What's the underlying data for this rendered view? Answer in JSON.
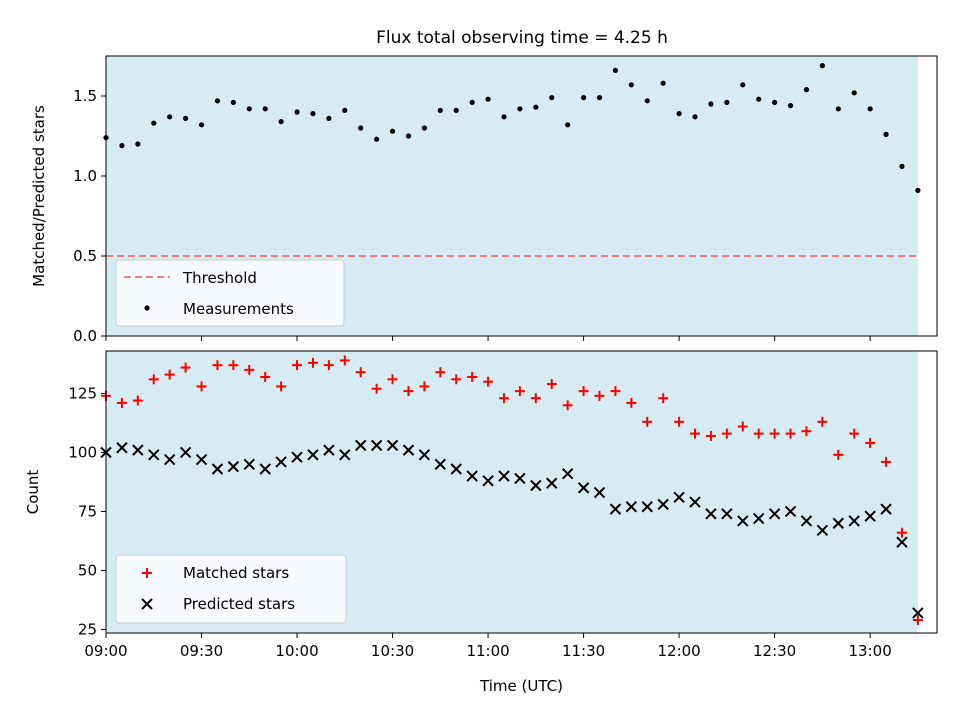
{
  "title": "Flux total observing time = 4.25 h",
  "colors": {
    "shade": "#add8e6",
    "threshold": "#f08080",
    "measurement": "#000000",
    "matched": "#ff0000",
    "predicted": "#000000"
  },
  "chart_data": [
    {
      "type": "scatter",
      "ylabel": "Matched/Predicted stars",
      "xlabel": "",
      "ylim": [
        0,
        1.75
      ],
      "yticks": [
        "0.0",
        "0.5",
        "1.0",
        "1.5"
      ],
      "shaded_range": [
        "09:00",
        "13:15"
      ],
      "legend_position": "lower-left",
      "threshold": {
        "name": "Threshold",
        "value": 0.5,
        "x_range": [
          "09:00",
          "13:15"
        ]
      },
      "series": [
        {
          "name": "Measurements",
          "x": [
            "09:00",
            "09:05",
            "09:10",
            "09:15",
            "09:20",
            "09:25",
            "09:30",
            "09:35",
            "09:40",
            "09:45",
            "09:50",
            "09:55",
            "10:00",
            "10:05",
            "10:10",
            "10:15",
            "10:20",
            "10:25",
            "10:30",
            "10:35",
            "10:40",
            "10:45",
            "10:50",
            "10:55",
            "11:00",
            "11:05",
            "11:10",
            "11:15",
            "11:20",
            "11:25",
            "11:30",
            "11:35",
            "11:40",
            "11:45",
            "11:50",
            "11:55",
            "12:00",
            "12:05",
            "12:10",
            "12:15",
            "12:20",
            "12:25",
            "12:30",
            "12:35",
            "12:40",
            "12:45",
            "12:50",
            "12:55",
            "13:00",
            "13:05",
            "13:10",
            "13:15"
          ],
          "y": [
            1.24,
            1.19,
            1.2,
            1.33,
            1.37,
            1.36,
            1.32,
            1.47,
            1.46,
            1.42,
            1.42,
            1.34,
            1.4,
            1.39,
            1.36,
            1.41,
            1.3,
            1.23,
            1.28,
            1.25,
            1.3,
            1.41,
            1.41,
            1.46,
            1.48,
            1.37,
            1.42,
            1.43,
            1.49,
            1.32,
            1.49,
            1.49,
            1.66,
            1.57,
            1.47,
            1.58,
            1.39,
            1.37,
            1.45,
            1.46,
            1.57,
            1.48,
            1.46,
            1.44,
            1.54,
            1.69,
            1.42,
            1.52,
            1.42,
            1.26,
            1.06,
            0.91
          ]
        }
      ]
    },
    {
      "type": "scatter",
      "ylabel": "Count",
      "xlabel": "Time (UTC)",
      "ylim": [
        23.5,
        143
      ],
      "yticks": [
        "25",
        "50",
        "75",
        "100",
        "125"
      ],
      "xticks": [
        "09:00",
        "09:30",
        "10:00",
        "10:30",
        "11:00",
        "11:30",
        "12:00",
        "12:30",
        "13:00"
      ],
      "shaded_range": [
        "09:00",
        "13:15"
      ],
      "legend_position": "lower-left",
      "series": [
        {
          "name": "Matched stars",
          "marker": "+",
          "x": [
            "09:00",
            "09:05",
            "09:10",
            "09:15",
            "09:20",
            "09:25",
            "09:30",
            "09:35",
            "09:40",
            "09:45",
            "09:50",
            "09:55",
            "10:00",
            "10:05",
            "10:10",
            "10:15",
            "10:20",
            "10:25",
            "10:30",
            "10:35",
            "10:40",
            "10:45",
            "10:50",
            "10:55",
            "11:00",
            "11:05",
            "11:10",
            "11:15",
            "11:20",
            "11:25",
            "11:30",
            "11:35",
            "11:40",
            "11:45",
            "11:50",
            "11:55",
            "12:00",
            "12:05",
            "12:10",
            "12:15",
            "12:20",
            "12:25",
            "12:30",
            "12:35",
            "12:40",
            "12:45",
            "12:50",
            "12:55",
            "13:00",
            "13:05",
            "13:10",
            "13:15"
          ],
          "y": [
            124,
            121,
            122,
            131,
            133,
            136,
            128,
            137,
            137,
            135,
            132,
            128,
            137,
            138,
            137,
            139,
            134,
            127,
            131,
            126,
            128,
            134,
            131,
            132,
            130,
            123,
            126,
            123,
            129,
            120,
            126,
            124,
            126,
            121,
            113,
            123,
            113,
            108,
            107,
            108,
            111,
            108,
            108,
            108,
            109,
            113,
            99,
            108,
            104,
            96,
            66,
            29
          ]
        },
        {
          "name": "Predicted stars",
          "marker": "x",
          "x": [
            "09:00",
            "09:05",
            "09:10",
            "09:15",
            "09:20",
            "09:25",
            "09:30",
            "09:35",
            "09:40",
            "09:45",
            "09:50",
            "09:55",
            "10:00",
            "10:05",
            "10:10",
            "10:15",
            "10:20",
            "10:25",
            "10:30",
            "10:35",
            "10:40",
            "10:45",
            "10:50",
            "10:55",
            "11:00",
            "11:05",
            "11:10",
            "11:15",
            "11:20",
            "11:25",
            "11:30",
            "11:35",
            "11:40",
            "11:45",
            "11:50",
            "11:55",
            "12:00",
            "12:05",
            "12:10",
            "12:15",
            "12:20",
            "12:25",
            "12:30",
            "12:35",
            "12:40",
            "12:45",
            "12:50",
            "12:55",
            "13:00",
            "13:05",
            "13:10",
            "13:15"
          ],
          "y": [
            100,
            102,
            101,
            99,
            97,
            100,
            97,
            93,
            94,
            95,
            93,
            96,
            98,
            99,
            101,
            99,
            103,
            103,
            103,
            101,
            99,
            95,
            93,
            90,
            88,
            90,
            89,
            86,
            87,
            91,
            85,
            83,
            76,
            77,
            77,
            78,
            81,
            79,
            74,
            74,
            71,
            72,
            74,
            75,
            71,
            67,
            70,
            71,
            73,
            76,
            62,
            32
          ]
        }
      ]
    }
  ]
}
